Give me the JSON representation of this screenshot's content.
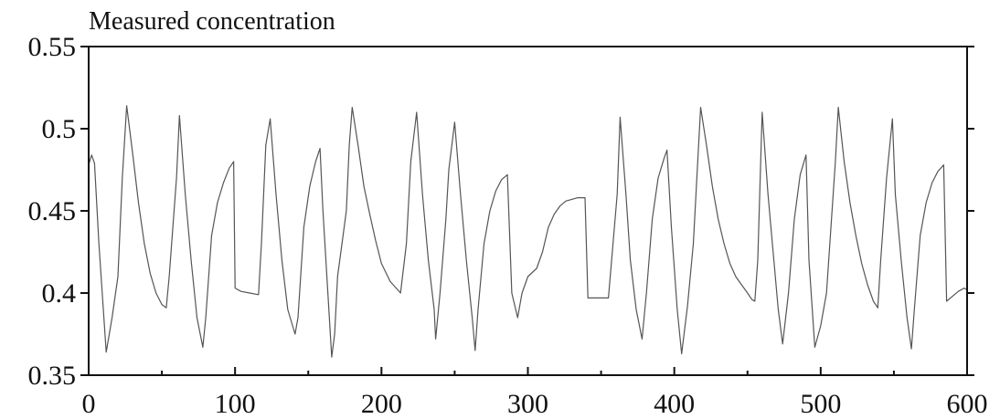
{
  "chart_data": {
    "type": "line",
    "title": "Measured concentration",
    "xlabel": "",
    "ylabel": "",
    "xlim": [
      0,
      600
    ],
    "ylim": [
      0.35,
      0.55
    ],
    "xticks": [
      0,
      100,
      200,
      300,
      400,
      500,
      600
    ],
    "yticks": [
      "0.35",
      "0.4",
      "0.45",
      "0.5",
      "0.55"
    ],
    "grid": false,
    "line_color": "#555555",
    "series": [
      {
        "x": [
          0,
          2,
          4,
          7,
          12,
          16,
          20,
          23,
          26,
          30,
          34,
          38,
          42,
          46,
          50,
          53,
          55,
          60,
          62,
          66,
          70,
          74,
          78,
          80,
          84,
          88,
          92,
          96,
          99,
          100,
          104,
          110,
          116,
          118,
          121,
          124,
          128,
          132,
          136,
          141,
          143,
          147,
          151,
          155,
          158,
          160,
          166,
          168,
          170,
          176,
          178,
          180,
          184,
          188,
          192,
          196,
          200,
          206,
          211,
          213,
          217,
          220,
          224,
          228,
          232,
          236,
          237,
          240,
          244,
          246,
          250,
          254,
          258,
          262,
          264,
          266,
          270,
          274,
          278,
          282,
          286,
          289,
          293,
          296,
          300,
          306,
          310,
          314,
          318,
          322,
          326,
          330,
          334,
          339,
          341,
          347,
          350,
          355,
          361,
          363,
          367,
          370,
          374,
          378,
          381,
          385,
          389,
          393,
          395,
          398,
          402,
          405,
          409,
          413,
          418,
          422,
          426,
          430,
          434,
          438,
          442,
          446,
          450,
          453,
          455,
          457,
          460,
          464,
          468,
          471,
          474,
          478,
          482,
          486,
          490,
          492,
          496,
          500,
          504,
          510,
          512,
          516,
          520,
          524,
          528,
          532,
          536,
          539,
          541,
          545,
          549,
          551,
          555,
          559,
          562,
          564,
          568,
          572,
          576,
          580,
          584,
          586,
          590,
          594,
          598,
          600
        ],
        "y": [
          0.478,
          0.484,
          0.479,
          0.43,
          0.364,
          0.385,
          0.41,
          0.47,
          0.514,
          0.485,
          0.455,
          0.43,
          0.412,
          0.4,
          0.393,
          0.391,
          0.41,
          0.47,
          0.508,
          0.46,
          0.42,
          0.385,
          0.367,
          0.385,
          0.435,
          0.455,
          0.467,
          0.476,
          0.48,
          0.403,
          0.401,
          0.4,
          0.399,
          0.43,
          0.49,
          0.506,
          0.46,
          0.42,
          0.39,
          0.375,
          0.385,
          0.44,
          0.465,
          0.48,
          0.488,
          0.45,
          0.361,
          0.375,
          0.41,
          0.45,
          0.49,
          0.513,
          0.49,
          0.465,
          0.448,
          0.432,
          0.418,
          0.407,
          0.402,
          0.4,
          0.43,
          0.48,
          0.51,
          0.46,
          0.42,
          0.39,
          0.372,
          0.4,
          0.445,
          0.475,
          0.504,
          0.46,
          0.42,
          0.385,
          0.365,
          0.39,
          0.43,
          0.45,
          0.462,
          0.469,
          0.472,
          0.4,
          0.385,
          0.4,
          0.41,
          0.415,
          0.425,
          0.44,
          0.448,
          0.453,
          0.456,
          0.457,
          0.458,
          0.458,
          0.397,
          0.397,
          0.397,
          0.397,
          0.46,
          0.507,
          0.46,
          0.42,
          0.39,
          0.372,
          0.4,
          0.445,
          0.47,
          0.482,
          0.487,
          0.44,
          0.39,
          0.363,
          0.392,
          0.43,
          0.513,
          0.49,
          0.465,
          0.445,
          0.43,
          0.418,
          0.41,
          0.405,
          0.4,
          0.396,
          0.395,
          0.42,
          0.51,
          0.46,
          0.42,
          0.39,
          0.369,
          0.4,
          0.445,
          0.472,
          0.484,
          0.42,
          0.367,
          0.38,
          0.4,
          0.48,
          0.513,
          0.48,
          0.455,
          0.435,
          0.418,
          0.405,
          0.395,
          0.391,
          0.42,
          0.47,
          0.506,
          0.46,
          0.42,
          0.385,
          0.366,
          0.39,
          0.435,
          0.455,
          0.467,
          0.474,
          0.478,
          0.395,
          0.398,
          0.401,
          0.403,
          0.402
        ]
      }
    ]
  }
}
